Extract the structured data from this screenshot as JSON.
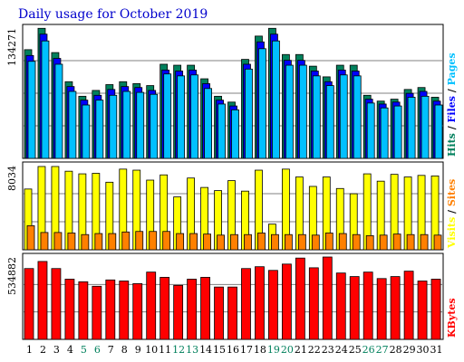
{
  "title": "Daily usage for October 2019",
  "colors": {
    "hits": "#00805c",
    "files": "#0000ff",
    "pages": "#00c0ff",
    "visits": "#ffff00",
    "sites": "#ff8000",
    "kbytes": "#ff0000",
    "weekend_day_label": "#00805c",
    "day_label": "#000000",
    "title": "#0000cc"
  },
  "chart_data": [
    {
      "type": "bar",
      "panel": "hits-files-pages",
      "max_label": "134271",
      "ylim": [
        0,
        134271
      ],
      "grid": true,
      "legend": [
        {
          "name": "Hits",
          "color": "#00805c"
        },
        {
          "name": "Files",
          "color": "#0000ff"
        },
        {
          "name": "Pages",
          "color": "#00c0ff"
        }
      ],
      "categories": [
        "1",
        "2",
        "3",
        "4",
        "5",
        "6",
        "7",
        "8",
        "9",
        "10",
        "11",
        "12",
        "13",
        "14",
        "15",
        "16",
        "17",
        "18",
        "19",
        "20",
        "21",
        "22",
        "23",
        "24",
        "25",
        "26",
        "27",
        "28",
        "29",
        "30",
        "31"
      ],
      "weekend_days": [
        "5",
        "6",
        "12",
        "13",
        "19",
        "20",
        "26",
        "27"
      ],
      "series": [
        {
          "name": "Hits",
          "values": [
            112000,
            134000,
            109000,
            79000,
            64000,
            70000,
            76000,
            79000,
            77000,
            75000,
            97000,
            96000,
            96000,
            82000,
            64000,
            58000,
            102000,
            126000,
            134000,
            107000,
            107000,
            95000,
            84000,
            96000,
            96000,
            65000,
            59000,
            61000,
            71000,
            73000,
            63000
          ]
        },
        {
          "name": "Files",
          "values": [
            106000,
            128000,
            103000,
            74000,
            60000,
            65000,
            71000,
            74000,
            73000,
            70000,
            91000,
            90000,
            91000,
            77000,
            60000,
            54000,
            97000,
            120000,
            128000,
            101000,
            101000,
            90000,
            79000,
            91000,
            90000,
            61000,
            56000,
            58000,
            67000,
            69000,
            59000
          ]
        },
        {
          "name": "Pages",
          "values": [
            100000,
            121000,
            97000,
            69000,
            55000,
            60000,
            65000,
            69000,
            68000,
            66000,
            87000,
            85000,
            86000,
            72000,
            56000,
            50000,
            92000,
            113000,
            121000,
            96000,
            96000,
            85000,
            75000,
            86000,
            85000,
            57000,
            52000,
            54000,
            63000,
            64000,
            55000
          ]
        }
      ]
    },
    {
      "type": "bar",
      "panel": "visits-sites",
      "max_label": "8034",
      "ylim": [
        0,
        8034
      ],
      "grid": true,
      "legend": [
        {
          "name": "Visits",
          "color": "#ffff00"
        },
        {
          "name": "Sites",
          "color": "#ff8000"
        }
      ],
      "categories": [
        "1",
        "2",
        "3",
        "4",
        "5",
        "6",
        "7",
        "8",
        "9",
        "10",
        "11",
        "12",
        "13",
        "14",
        "15",
        "16",
        "17",
        "18",
        "19",
        "20",
        "21",
        "22",
        "23",
        "24",
        "25",
        "26",
        "27",
        "28",
        "29",
        "30",
        "31"
      ],
      "series": [
        {
          "name": "Visits",
          "values": [
            5800,
            7950,
            7950,
            7500,
            7250,
            7300,
            6450,
            7700,
            7600,
            6650,
            7150,
            5050,
            6850,
            5950,
            5650,
            6600,
            5600,
            7600,
            2450,
            7700,
            6950,
            6050,
            6950,
            5850,
            5350,
            7250,
            6550,
            7200,
            6950,
            7100,
            7050
          ]
        },
        {
          "name": "Sites",
          "values": [
            2300,
            1650,
            1650,
            1600,
            1450,
            1550,
            1550,
            1700,
            1750,
            1750,
            1750,
            1550,
            1550,
            1500,
            1400,
            1450,
            1450,
            1600,
            1450,
            1450,
            1450,
            1400,
            1600,
            1550,
            1450,
            1350,
            1400,
            1500,
            1450,
            1450,
            1400
          ]
        }
      ]
    },
    {
      "type": "bar",
      "panel": "kbytes",
      "max_label": "534882",
      "ylim": [
        0,
        534882
      ],
      "grid": true,
      "legend": [
        {
          "name": "KBytes",
          "color": "#ff0000"
        }
      ],
      "categories": [
        "1",
        "2",
        "3",
        "4",
        "5",
        "6",
        "7",
        "8",
        "9",
        "10",
        "11",
        "12",
        "13",
        "14",
        "15",
        "16",
        "17",
        "18",
        "19",
        "20",
        "21",
        "22",
        "23",
        "24",
        "25",
        "26",
        "27",
        "28",
        "29",
        "30",
        "31"
      ],
      "series": [
        {
          "name": "KBytes",
          "values": [
            460000,
            506000,
            460000,
            391000,
            374000,
            345000,
            386000,
            379000,
            362000,
            437000,
            403000,
            351000,
            391000,
            403000,
            340000,
            340000,
            460000,
            472000,
            448000,
            489000,
            528000,
            465000,
            534882,
            431000,
            408000,
            437000,
            395000,
            408000,
            443000,
            379000,
            391000
          ]
        }
      ]
    }
  ]
}
